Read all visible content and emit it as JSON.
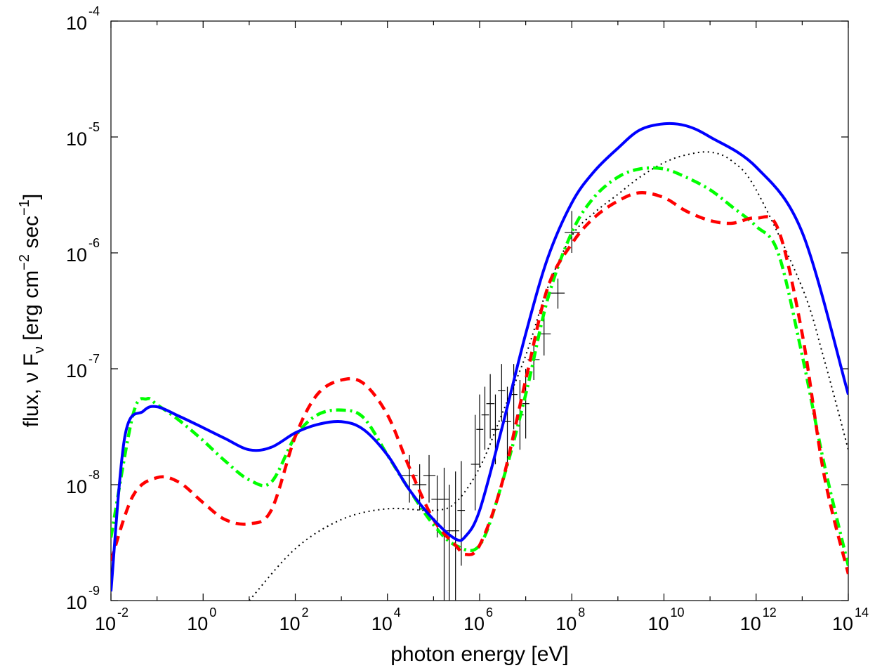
{
  "chart_data": {
    "type": "line",
    "title": "",
    "xlabel": "photon energy [eV]",
    "ylabel": {
      "prefix": "flux, ",
      "nu": "ν",
      "F": " F",
      "nu_sub": "ν",
      "units_open": " [erg cm",
      "exp1": "−2",
      "units_mid": " sec",
      "exp2": "−1",
      "units_close": "]"
    },
    "x_scale": "log",
    "y_scale": "log",
    "xlim": [
      0.01,
      100000000000000.0
    ],
    "ylim": [
      1e-09,
      0.0001
    ],
    "x_ticks": [
      {
        "base": "10",
        "exp": "-2",
        "value": 0.01
      },
      {
        "base": "10",
        "exp": "0",
        "value": 1
      },
      {
        "base": "10",
        "exp": "2",
        "value": 100
      },
      {
        "base": "10",
        "exp": "4",
        "value": 10000
      },
      {
        "base": "10",
        "exp": "6",
        "value": 1000000
      },
      {
        "base": "10",
        "exp": "8",
        "value": 100000000
      },
      {
        "base": "10",
        "exp": "10",
        "value": 10000000000
      },
      {
        "base": "10",
        "exp": "12",
        "value": 1000000000000
      },
      {
        "base": "10",
        "exp": "14",
        "value": 100000000000000
      }
    ],
    "y_ticks": [
      {
        "base": "10",
        "exp": "-9",
        "value": 1e-09
      },
      {
        "base": "10",
        "exp": "-8",
        "value": 1e-08
      },
      {
        "base": "10",
        "exp": "-7",
        "value": 1e-07
      },
      {
        "base": "10",
        "exp": "-6",
        "value": 1e-06
      },
      {
        "base": "10",
        "exp": "-5",
        "value": 1e-05
      },
      {
        "base": "10",
        "exp": "-4",
        "value": 0.0001
      }
    ],
    "grid": false,
    "legend": "none",
    "series": [
      {
        "style": "solid",
        "color": "#0000ff",
        "x": [
          0.01,
          0.02,
          0.05,
          0.1,
          0.3,
          1,
          3,
          10,
          30,
          100,
          300,
          1000,
          3000,
          10000,
          30000,
          100000,
          300000,
          500000,
          1000000,
          3000000,
          10000000,
          30000000,
          100000000,
          300000000,
          1000000000,
          3000000000,
          10000000000,
          30000000000,
          100000000000,
          1000000000000,
          10000000000000,
          100000000000000
        ],
        "y": [
          1.2e-09,
          2.6e-08,
          4.3e-08,
          4.7e-08,
          3.9e-08,
          3.1e-08,
          2.5e-08,
          2e-08,
          2.1e-08,
          2.8e-08,
          3.3e-08,
          3.5e-08,
          3e-08,
          1.8e-08,
          9e-09,
          5e-09,
          3.4e-09,
          3.6e-09,
          6e-09,
          3e-08,
          2e-07,
          9e-07,
          2.7e-06,
          5e-06,
          8e-06,
          1.15e-05,
          1.3e-05,
          1.25e-05,
          1e-05,
          5.5e-06,
          1.5e-06,
          6e-08
        ]
      },
      {
        "style": "dashed",
        "color": "#ff0000",
        "x": [
          0.01,
          0.03,
          0.1,
          0.3,
          1,
          3,
          10,
          30,
          100,
          300,
          1000,
          3000,
          10000,
          30000,
          100000,
          300000,
          500000,
          1000000,
          3000000,
          10000000,
          30000000,
          100000000,
          300000000,
          1000000000,
          3000000000,
          10000000000,
          30000000000,
          100000000000,
          300000000000,
          1000000000000,
          3000000000000,
          10000000000000,
          30000000000000,
          100000000000000
        ],
        "y": [
          2.2e-09,
          8e-09,
          1.15e-08,
          1.05e-08,
          7e-09,
          5e-09,
          4.6e-09,
          6e-09,
          2.6e-08,
          6e-08,
          8e-08,
          7.5e-08,
          4e-08,
          1.4e-08,
          5e-09,
          3e-09,
          2.5e-09,
          3e-09,
          1e-08,
          8e-08,
          5e-07,
          1.2e-06,
          2e-06,
          2.8e-06,
          3.3e-06,
          3e-06,
          2.3e-06,
          1.9e-06,
          1.8e-06,
          2e-06,
          1.6e-06,
          2e-07,
          1.2e-08,
          1.7e-09
        ]
      },
      {
        "style": "dashdot",
        "color": "#00ff00",
        "x": [
          0.01,
          0.03,
          0.06,
          0.1,
          0.3,
          1,
          3,
          10,
          30,
          100,
          300,
          1000,
          3000,
          10000,
          30000,
          100000,
          300000,
          1000000,
          3000000,
          10000000,
          30000000,
          100000000,
          300000000,
          1000000000,
          3000000000,
          10000000000,
          30000000000,
          100000000000,
          300000000000,
          1000000000000,
          3000000000000,
          10000000000000,
          30000000000000,
          100000000000000
        ],
        "y": [
          3.5e-09,
          4e-08,
          5.5e-08,
          4.9e-08,
          3.6e-08,
          2.4e-08,
          1.6e-08,
          1.1e-08,
          1.05e-08,
          2.6e-08,
          4e-08,
          4.4e-08,
          3.8e-08,
          1.8e-08,
          9e-09,
          4.5e-09,
          3e-09,
          3e-09,
          1e-08,
          6e-08,
          4e-07,
          1.5e-06,
          3e-06,
          4.5e-06,
          5.3e-06,
          5.3e-06,
          4.5e-06,
          3.5e-06,
          2.5e-06,
          1.7e-06,
          1e-06,
          1.3e-07,
          1.5e-08,
          2e-09
        ]
      },
      {
        "style": "dotted",
        "color": "#000000",
        "x": [
          10,
          100,
          1000,
          10000,
          100000,
          300000,
          1000000,
          3000000,
          10000000,
          30000000,
          100000000,
          300000000,
          1000000000,
          3000000000,
          10000000000,
          30000000000,
          100000000000,
          300000000000,
          1000000000000,
          10000000000000,
          30000000000000,
          100000000000000
        ],
        "y": [
          1e-09,
          2.8e-09,
          5e-09,
          6.2e-09,
          6e-09,
          7e-09,
          1.4e-08,
          4e-08,
          1.3e-07,
          5e-07,
          1.4e-06,
          2.2e-06,
          3.2e-06,
          4.5e-06,
          6e-06,
          7e-06,
          7.4e-06,
          6.2e-06,
          3.5e-06,
          5e-07,
          1.2e-07,
          2e-08
        ]
      }
    ],
    "error_bars": [
      {
        "x": 30000,
        "y": 1.2e-08,
        "xerr": [
          20000,
          45000
        ],
        "yerr": [
          7e-09,
          1.8e-08
        ]
      },
      {
        "x": 50000,
        "y": 1e-08,
        "xerr": [
          35000,
          70000
        ],
        "yerr": [
          6e-09,
          1.5e-08
        ]
      },
      {
        "x": 80000,
        "y": 1.2e-08,
        "xerr": [
          60000,
          110000
        ],
        "yerr": [
          7e-09,
          1.8e-08
        ]
      },
      {
        "x": 120000,
        "y": 7.5e-09,
        "xerr": [
          90000,
          160000
        ],
        "yerr": [
          3.5e-09,
          1.2e-08
        ]
      },
      {
        "x": 170000,
        "y": 7.5e-09,
        "xerr": [
          130000,
          220000
        ],
        "yerr": [
          1e-09,
          1.4e-08
        ]
      },
      {
        "x": 220000,
        "y": 4e-09,
        "xerr": [
          180000,
          270000
        ],
        "yerr": [
          1e-09,
          1e-08
        ]
      },
      {
        "x": 300000,
        "y": 4e-09,
        "xerr": [
          250000,
          360000
        ],
        "yerr": [
          1e-09,
          1.3e-08
        ]
      },
      {
        "x": 400000,
        "y": 6e-09,
        "xerr": [
          330000,
          480000
        ],
        "yerr": [
          2e-09,
          1.6e-08
        ]
      },
      {
        "x": 800000,
        "y": 1.5e-08,
        "xerr": [
          650000,
          1000000
        ],
        "yerr": [
          6e-09,
          4e-08
        ]
      },
      {
        "x": 1000000,
        "y": 3e-08,
        "xerr": [
          850000,
          1200000
        ],
        "yerr": [
          1.4e-08,
          6e-08
        ]
      },
      {
        "x": 1300000,
        "y": 4e-08,
        "xerr": [
          1100000,
          1600000
        ],
        "yerr": [
          2e-08,
          7e-08
        ]
      },
      {
        "x": 1700000,
        "y": 5e-08,
        "xerr": [
          1400000,
          2100000
        ],
        "yerr": [
          2.5e-08,
          9e-08
        ]
      },
      {
        "x": 2200000,
        "y": 3e-08,
        "xerr": [
          1800000,
          2700000
        ],
        "yerr": [
          1.5e-08,
          6e-08
        ]
      },
      {
        "x": 3000000,
        "y": 6.5e-08,
        "xerr": [
          2500000,
          3600000
        ],
        "yerr": [
          3.5e-08,
          1.1e-07
        ]
      },
      {
        "x": 4000000,
        "y": 3.5e-08,
        "xerr": [
          3300000,
          4800000
        ],
        "yerr": [
          1.5e-08,
          7e-08
        ]
      },
      {
        "x": 5500000,
        "y": 6e-08,
        "xerr": [
          4500000,
          6600000
        ],
        "yerr": [
          3e-08,
          1.1e-07
        ]
      },
      {
        "x": 7500000,
        "y": 4e-08,
        "xerr": [
          6300000,
          9000000
        ],
        "yerr": [
          2e-08,
          8e-08
        ]
      },
      {
        "x": 10000000,
        "y": 5e-08,
        "xerr": [
          8500000,
          12000000
        ],
        "yerr": [
          2.5e-08,
          1e-07
        ]
      },
      {
        "x": 15000000,
        "y": 1.2e-07,
        "xerr": [
          11000000,
          20000000
        ],
        "yerr": [
          8e-08,
          1.8e-07
        ]
      },
      {
        "x": 25000000,
        "y": 2e-07,
        "xerr": [
          18000000,
          35000000
        ],
        "yerr": [
          1.3e-07,
          3e-07
        ]
      },
      {
        "x": 50000000,
        "y": 4.5e-07,
        "xerr": [
          35000000,
          70000000
        ],
        "yerr": [
          3.3e-07,
          6e-07
        ]
      },
      {
        "x": 100000000,
        "y": 1.5e-06,
        "xerr": [
          70000000,
          150000000
        ],
        "yerr": [
          1e-06,
          2.3e-06
        ]
      }
    ]
  }
}
